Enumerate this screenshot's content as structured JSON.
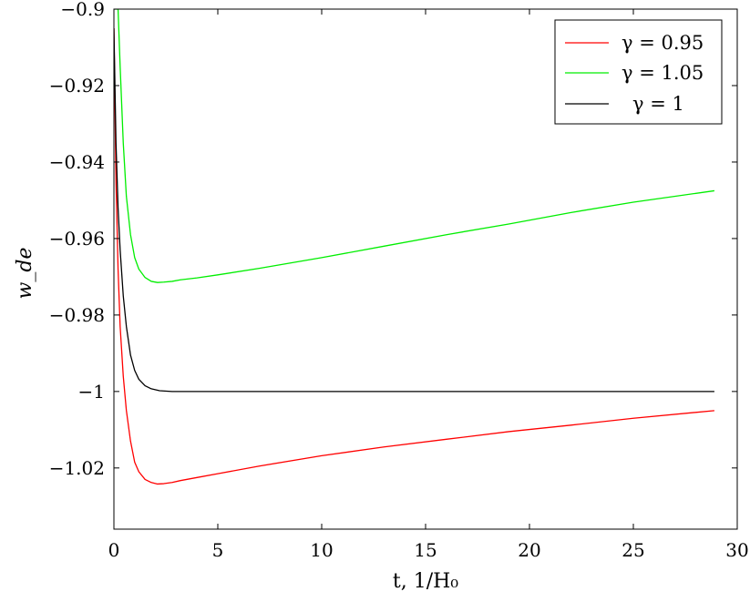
{
  "chart_data": {
    "type": "line",
    "xlabel": "t, 1/H₀",
    "ylabel": "w_de",
    "xlim": [
      0,
      30
    ],
    "ylim": [
      -1.036,
      -0.9
    ],
    "xticks": [
      0,
      5,
      10,
      15,
      20,
      25,
      30
    ],
    "yticks": [
      -0.9,
      -0.92,
      -0.94,
      -0.96,
      -0.98,
      -1,
      -1.02
    ],
    "xtick_labels": [
      "0",
      "5",
      "10",
      "15",
      "20",
      "25",
      "30"
    ],
    "ytick_labels": [
      "−0.9",
      "−0.92",
      "−0.94",
      "−0.96",
      "−0.98",
      "−1",
      "−1.02"
    ],
    "grid": false,
    "legend_position": "top-right",
    "series": [
      {
        "name": "γ = 0.95",
        "color": "#ff0000",
        "x": [
          0,
          0.1,
          0.2,
          0.3,
          0.45,
          0.6,
          0.8,
          1.0,
          1.2,
          1.5,
          1.8,
          2.1,
          2.4,
          2.8,
          3.2,
          4,
          5,
          7,
          10,
          13,
          16,
          19,
          22,
          25,
          28.9
        ],
        "y": [
          -0.905,
          -0.945,
          -0.968,
          -0.983,
          -0.996,
          -1.005,
          -1.013,
          -1.0185,
          -1.021,
          -1.023,
          -1.0238,
          -1.0242,
          -1.0241,
          -1.0238,
          -1.0233,
          -1.0225,
          -1.0215,
          -1.0195,
          -1.0168,
          -1.0145,
          -1.0125,
          -1.0105,
          -1.0088,
          -1.007,
          -1.005
        ]
      },
      {
        "name": "γ = 1.05",
        "color": "#00ee00",
        "x": [
          0,
          0.1,
          0.2,
          0.3,
          0.45,
          0.6,
          0.8,
          1.0,
          1.2,
          1.5,
          1.8,
          2.1,
          2.4,
          2.8,
          3.2,
          4,
          5,
          7,
          10,
          13,
          16,
          19,
          22,
          25,
          28.9
        ],
        "y": [
          -0.9,
          -0.9,
          -0.9,
          -0.915,
          -0.935,
          -0.949,
          -0.959,
          -0.965,
          -0.968,
          -0.9702,
          -0.9712,
          -0.9715,
          -0.9714,
          -0.9712,
          -0.9708,
          -0.9703,
          -0.9695,
          -0.9678,
          -0.965,
          -0.962,
          -0.959,
          -0.9562,
          -0.9532,
          -0.9505,
          -0.9475
        ]
      },
      {
        "name": "γ = 1",
        "color": "#000000",
        "x": [
          0,
          0.1,
          0.2,
          0.3,
          0.45,
          0.6,
          0.8,
          1.0,
          1.2,
          1.5,
          1.8,
          2.2,
          2.8,
          3.5,
          5,
          10,
          15,
          20,
          25,
          28.9
        ],
        "y": [
          -0.905,
          -0.935,
          -0.952,
          -0.963,
          -0.975,
          -0.983,
          -0.9905,
          -0.9945,
          -0.9968,
          -0.9985,
          -0.9993,
          -0.9998,
          -1.0,
          -1.0,
          -1.0,
          -1.0,
          -1.0,
          -1.0,
          -1.0,
          -1.0
        ]
      }
    ]
  }
}
